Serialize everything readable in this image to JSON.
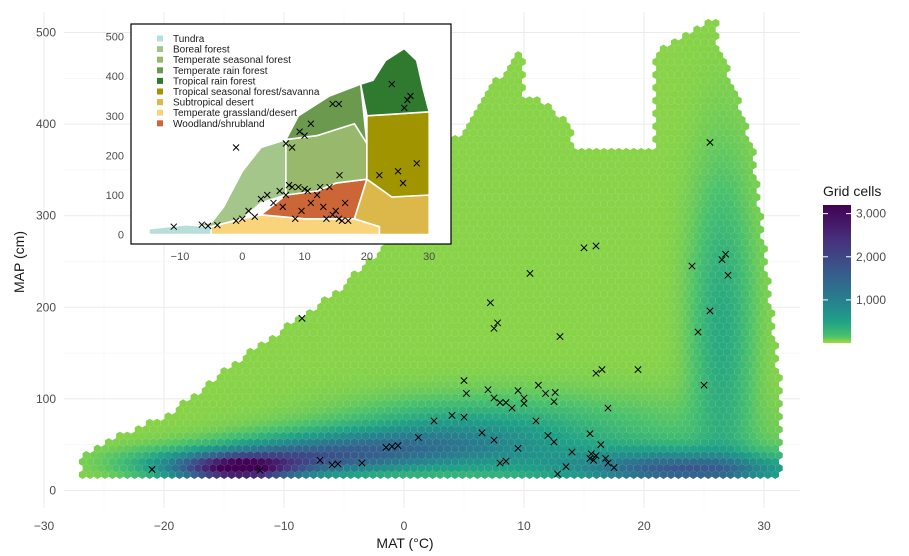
{
  "chart_data": {
    "type": "heatmap",
    "subtype": "hexbin-density",
    "xlabel": "MAT (°C)",
    "ylabel": "MAP (cm)",
    "xlim": [
      -30,
      35
    ],
    "ylim": [
      0,
      520
    ],
    "x_ticks": [
      -30,
      -20,
      -10,
      0,
      10,
      20,
      30
    ],
    "y_ticks": [
      0,
      100,
      200,
      300,
      400,
      500
    ],
    "grid": true,
    "legend": {
      "title": "Grid cells",
      "placement": "right",
      "ticks": [
        1000,
        2000,
        3000
      ],
      "tick_labels": [
        "1,000",
        "2,000",
        "3,000"
      ],
      "range": [
        1,
        3200
      ],
      "colormap": [
        "#a0da39",
        "#4ac16d",
        "#1fa187",
        "#277f8e",
        "#365c8d",
        "#46327e",
        "#440154"
      ]
    },
    "sites": [
      [
        -21,
        23
      ],
      [
        -12,
        22
      ],
      [
        -7,
        33
      ],
      [
        -6,
        28
      ],
      [
        -5.5,
        29
      ],
      [
        -3.5,
        30
      ],
      [
        -1.5,
        47
      ],
      [
        -1,
        48
      ],
      [
        -0.5,
        49
      ],
      [
        1.2,
        58
      ],
      [
        2.5,
        76
      ],
      [
        4,
        82
      ],
      [
        5,
        80
      ],
      [
        6.5,
        63
      ],
      [
        7.5,
        55
      ],
      [
        8,
        30
      ],
      [
        8.5,
        32
      ],
      [
        9.5,
        46
      ],
      [
        10,
        95
      ],
      [
        10,
        101
      ],
      [
        11,
        76
      ],
      [
        12,
        60
      ],
      [
        12.5,
        53
      ],
      [
        12.8,
        18
      ],
      [
        13.5,
        26
      ],
      [
        14,
        42
      ],
      [
        15.5,
        35
      ],
      [
        15.6,
        40
      ],
      [
        15.8,
        33
      ],
      [
        16,
        38
      ],
      [
        16.4,
        50
      ],
      [
        17,
        30
      ],
      [
        17.5,
        25
      ],
      [
        16.8,
        35
      ],
      [
        15.5,
        62
      ],
      [
        7,
        110
      ],
      [
        7.5,
        101
      ],
      [
        8,
        96
      ],
      [
        8.5,
        96
      ],
      [
        9,
        90
      ],
      [
        9.5,
        109
      ],
      [
        11.2,
        115
      ],
      [
        11.8,
        106
      ],
      [
        12.5,
        97
      ],
      [
        12.6,
        107
      ],
      [
        5,
        120
      ],
      [
        5.2,
        106
      ],
      [
        7.2,
        205
      ],
      [
        7.5,
        177
      ],
      [
        7.8,
        183
      ],
      [
        10.5,
        237
      ],
      [
        13,
        168
      ],
      [
        15,
        265
      ],
      [
        16,
        267
      ],
      [
        16,
        128
      ],
      [
        16.5,
        132
      ],
      [
        17,
        90
      ],
      [
        19.5,
        132
      ],
      [
        24,
        245
      ],
      [
        24.5,
        173
      ],
      [
        25,
        115
      ],
      [
        25.5,
        196
      ],
      [
        26.5,
        252
      ],
      [
        26.8,
        258
      ],
      [
        27,
        235
      ],
      [
        25.5,
        380
      ],
      [
        -8.5,
        188
      ]
    ],
    "inset": {
      "x_ticks": [
        -10,
        0,
        10,
        20,
        30
      ],
      "y_ticks": [
        0,
        100,
        200,
        300,
        400,
        500
      ],
      "xlim": [
        -17,
        32
      ],
      "ylim": [
        -15,
        520
      ],
      "biomes": [
        {
          "name": "Tundra",
          "color": "#b8dedb"
        },
        {
          "name": "Boreal forest",
          "color": "#a4c68a"
        },
        {
          "name": "Temperate seasonal forest",
          "color": "#98b86c"
        },
        {
          "name": "Temperate rain forest",
          "color": "#6b9a4e"
        },
        {
          "name": "Tropical rain forest",
          "color": "#2f7a2f"
        },
        {
          "name": "Tropical seasonal forest/savanna",
          "color": "#a09400"
        },
        {
          "name": "Subtropical desert",
          "color": "#dcb84a"
        },
        {
          "name": "Temperate grassland/desert",
          "color": "#fad47a"
        },
        {
          "name": "Woodland/shrubland",
          "color": "#cc6637"
        }
      ],
      "sites": [
        [
          -11,
          20
        ],
        [
          -6.5,
          25
        ],
        [
          -5.5,
          22
        ],
        [
          -4,
          24
        ],
        [
          -1,
          35
        ],
        [
          0,
          40
        ],
        [
          1,
          60
        ],
        [
          2,
          45
        ],
        [
          3,
          90
        ],
        [
          4,
          100
        ],
        [
          5,
          80
        ],
        [
          6,
          110
        ],
        [
          6.5,
          70
        ],
        [
          7,
          100
        ],
        [
          7.5,
          125
        ],
        [
          8,
          120
        ],
        [
          8.5,
          40
        ],
        [
          9,
          120
        ],
        [
          9.5,
          60
        ],
        [
          10,
          115
        ],
        [
          10.5,
          110
        ],
        [
          11,
          80
        ],
        [
          12,
          100
        ],
        [
          12.5,
          120
        ],
        [
          13,
          70
        ],
        [
          13.5,
          40
        ],
        [
          14,
          120
        ],
        [
          14.5,
          50
        ],
        [
          15,
          60
        ],
        [
          15.5,
          40
        ],
        [
          16,
          35
        ],
        [
          16.5,
          80
        ],
        [
          17,
          35
        ],
        [
          7,
          230
        ],
        [
          8,
          220
        ],
        [
          10,
          250
        ],
        [
          11,
          280
        ],
        [
          14.5,
          330
        ],
        [
          15.5,
          330
        ],
        [
          24,
          380
        ],
        [
          25,
          160
        ],
        [
          26,
          320
        ],
        [
          26.5,
          340
        ],
        [
          27,
          350
        ],
        [
          28,
          180
        ],
        [
          25.8,
          130
        ],
        [
          22,
          150
        ],
        [
          -1,
          220
        ],
        [
          15.6,
          150
        ],
        [
          9.2,
          260
        ]
      ]
    }
  }
}
